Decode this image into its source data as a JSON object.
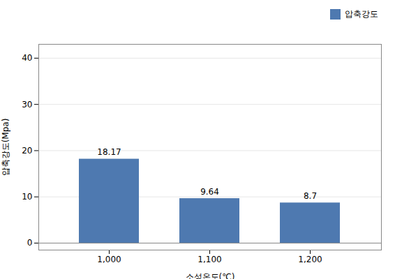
{
  "chart_data": {
    "type": "bar",
    "categories": [
      "1,000",
      "1,100",
      "1,200"
    ],
    "series": [
      {
        "name": "압축강도",
        "color": "#4e79b0",
        "values": [
          18.17,
          9.64,
          8.7
        ]
      }
    ],
    "xlabel": "소성온도(℃)",
    "ylabel": "압축강도(Mpa)",
    "ylim": [
      -1.5,
      43
    ],
    "yticks": [
      0,
      10,
      20,
      30,
      40
    ],
    "grid": true,
    "legend": "upper right",
    "data_labels": true
  }
}
